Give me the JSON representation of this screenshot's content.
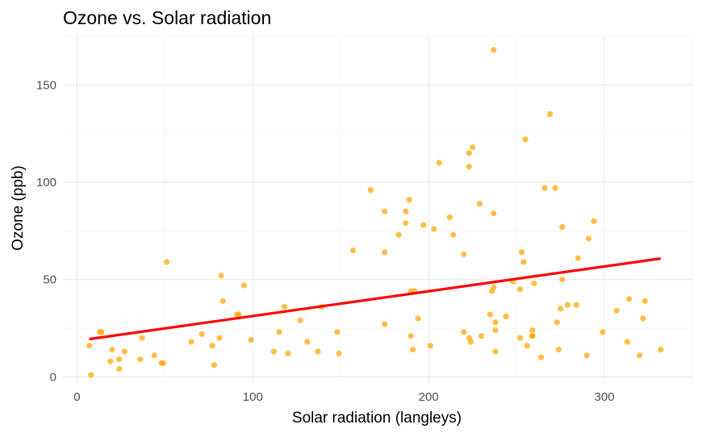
{
  "chart_data": {
    "type": "scatter",
    "title": "Ozone vs. Solar radiation",
    "xlabel": "Solar radiation (langleys)",
    "ylabel": "Ozone (ppb)",
    "xlim": [
      -8,
      350
    ],
    "ylim": [
      -4,
      175
    ],
    "x_ticks": [
      0,
      100,
      200,
      300
    ],
    "y_ticks": [
      0,
      50,
      100,
      150
    ],
    "x_tick_labels": [
      "0",
      "100",
      "200",
      "300"
    ],
    "y_tick_labels": [
      "0",
      "50",
      "100",
      "150"
    ],
    "grid": true,
    "point_color": "#FFA500",
    "trend_color": "#FF0000",
    "points": [
      [
        8,
        1
      ],
      [
        7,
        16
      ],
      [
        13,
        23
      ],
      [
        14,
        23
      ],
      [
        19,
        8
      ],
      [
        20,
        14
      ],
      [
        24,
        4
      ],
      [
        24,
        9
      ],
      [
        27,
        13
      ],
      [
        36,
        9
      ],
      [
        37,
        20
      ],
      [
        44,
        11
      ],
      [
        48,
        7
      ],
      [
        49,
        7
      ],
      [
        51,
        59
      ],
      [
        65,
        18
      ],
      [
        71,
        22
      ],
      [
        77,
        16
      ],
      [
        78,
        6
      ],
      [
        81,
        20
      ],
      [
        82,
        52
      ],
      [
        83,
        39
      ],
      [
        91,
        32
      ],
      [
        92,
        32
      ],
      [
        95,
        47
      ],
      [
        99,
        19
      ],
      [
        112,
        13
      ],
      [
        115,
        23
      ],
      [
        118,
        36
      ],
      [
        120,
        12
      ],
      [
        127,
        29
      ],
      [
        131,
        18
      ],
      [
        137,
        13
      ],
      [
        139,
        36
      ],
      [
        148,
        23
      ],
      [
        149,
        12
      ],
      [
        157,
        65
      ],
      [
        167,
        96
      ],
      [
        175,
        85
      ],
      [
        175,
        64
      ],
      [
        175,
        27
      ],
      [
        183,
        73
      ],
      [
        187,
        85
      ],
      [
        187,
        79
      ],
      [
        189,
        91
      ],
      [
        190,
        44
      ],
      [
        191,
        14
      ],
      [
        190,
        21
      ],
      [
        192,
        44
      ],
      [
        194,
        30
      ],
      [
        197,
        78
      ],
      [
        201,
        16
      ],
      [
        203,
        76
      ],
      [
        206,
        110
      ],
      [
        212,
        82
      ],
      [
        214,
        73
      ],
      [
        220,
        63
      ],
      [
        220,
        23
      ],
      [
        223,
        115
      ],
      [
        223,
        108
      ],
      [
        224,
        18
      ],
      [
        223,
        20
      ],
      [
        225,
        118
      ],
      [
        229,
        89
      ],
      [
        230,
        21
      ],
      [
        235,
        32
      ],
      [
        236,
        44
      ],
      [
        237,
        46
      ],
      [
        237,
        84
      ],
      [
        237,
        168
      ],
      [
        238,
        28
      ],
      [
        238,
        13
      ],
      [
        238,
        24
      ],
      [
        244,
        31
      ],
      [
        248,
        49
      ],
      [
        252,
        20
      ],
      [
        252,
        45
      ],
      [
        253,
        64
      ],
      [
        254,
        59
      ],
      [
        255,
        122
      ],
      [
        256,
        16
      ],
      [
        259,
        21
      ],
      [
        259,
        21
      ],
      [
        259,
        24
      ],
      [
        260,
        48
      ],
      [
        264,
        10
      ],
      [
        266,
        97
      ],
      [
        269,
        135
      ],
      [
        272,
        97
      ],
      [
        273,
        28
      ],
      [
        274,
        14
      ],
      [
        275,
        35
      ],
      [
        276,
        50
      ],
      [
        276,
        77
      ],
      [
        279,
        37
      ],
      [
        284,
        37
      ],
      [
        285,
        61
      ],
      [
        290,
        11
      ],
      [
        291,
        71
      ],
      [
        294,
        80
      ],
      [
        299,
        23
      ],
      [
        307,
        34
      ],
      [
        313,
        18
      ],
      [
        314,
        40
      ],
      [
        320,
        11
      ],
      [
        322,
        30
      ],
      [
        323,
        39
      ],
      [
        332,
        14
      ]
    ],
    "trend_line": {
      "x": [
        7,
        332
      ],
      "y": [
        19.4,
        60.8
      ]
    }
  }
}
